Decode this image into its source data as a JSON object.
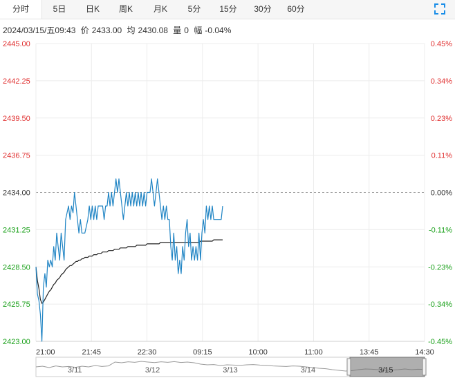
{
  "tabs": [
    {
      "label": "分时",
      "active": true
    },
    {
      "label": "5日",
      "active": false
    },
    {
      "label": "日K",
      "active": false
    },
    {
      "label": "周K",
      "active": false
    },
    {
      "label": "月K",
      "active": false
    },
    {
      "label": "5分",
      "active": false
    },
    {
      "label": "15分",
      "active": false
    },
    {
      "label": "30分",
      "active": false
    },
    {
      "label": "60分",
      "active": false
    }
  ],
  "info": {
    "datetime": "2024/03/15/五09:43",
    "price_label": "价",
    "price": "2433.00",
    "avg_label": "均",
    "avg": "2430.08",
    "vol_label": "量",
    "vol": "0",
    "change_label": "幅",
    "change": "-0.04%"
  },
  "colors": {
    "up": "#e03030",
    "down": "#1aa01a",
    "neutral": "#333333",
    "price_line": "#1f84c4",
    "avg_line": "#222222",
    "grid": "#ececec",
    "icon": "#1a8ee8"
  },
  "chart_data": {
    "type": "line",
    "title": "",
    "xlabel": "",
    "ylabel": "",
    "prev_close": 2434.0,
    "ylim": [
      2423.0,
      2445.0
    ],
    "y_ticks": [
      "2445.00",
      "2442.25",
      "2439.50",
      "2436.75",
      "2434.00",
      "2431.25",
      "2428.50",
      "2425.75",
      "2423.00"
    ],
    "pct_ticks": [
      "0.45%",
      "0.34%",
      "0.23%",
      "0.11%",
      "0.00%",
      "-0.11%",
      "-0.23%",
      "-0.34%",
      "-0.45%"
    ],
    "x_ticks": [
      "21:00",
      "21:45",
      "22:30",
      "09:15",
      "10:00",
      "11:00",
      "13:45",
      "14:30"
    ],
    "grid": true,
    "series": [
      {
        "role": "price",
        "values": [
          2428.5,
          2426.5,
          2426.0,
          2425.0,
          2423.0,
          2427.0,
          2428.0,
          2427.0,
          2429.0,
          2428.5,
          2429.0,
          2428.5,
          2430.0,
          2429.0,
          2431.0,
          2430.0,
          2429.0,
          2431.0,
          2430.0,
          2429.0,
          2432.0,
          2432.5,
          2433.0,
          2432.0,
          2433.0,
          2432.5,
          2434.0,
          2433.0,
          2432.0,
          2431.0,
          2432.0,
          2431.0,
          2431.0,
          2431.0,
          2431.5,
          2432.0,
          2433.0,
          2432.0,
          2433.0,
          2432.0,
          2433.0,
          2432.0,
          2433.0,
          2433.0,
          2433.0,
          2433.0,
          2432.0,
          2433.0,
          2433.0,
          2434.0,
          2433.0,
          2434.0,
          2433.0,
          2434.0,
          2435.0,
          2434.0,
          2435.0,
          2434.0,
          2433.0,
          2432.0,
          2433.0,
          2434.0,
          2433.0,
          2434.0,
          2433.0,
          2434.0,
          2433.0,
          2434.0,
          2433.0,
          2434.0,
          2433.0,
          2434.0,
          2433.0,
          2434.0,
          2433.0,
          2434.0,
          2434.0,
          2434.0,
          2435.0,
          2434.0,
          2433.0,
          2434.0,
          2435.0,
          2434.0,
          2433.0,
          2432.0,
          2433.0,
          2432.0,
          2433.0,
          2432.0,
          2432.0,
          2430.0,
          2429.0,
          2431.0,
          2429.0,
          2430.0,
          2428.0,
          2429.0,
          2428.0,
          2430.0,
          2429.0,
          2431.0,
          2432.0,
          2430.0,
          2431.0,
          2429.0,
          2430.0,
          2429.0,
          2430.0,
          2429.0,
          2431.0,
          2429.0,
          2431.0,
          2432.0,
          2431.0,
          2433.0,
          2432.0,
          2433.0,
          2432.0,
          2433.0,
          2432.0,
          2432.0,
          2432.0,
          2432.0,
          2432.0,
          2432.0,
          2433.0
        ]
      },
      {
        "role": "average",
        "values": [
          2428.5,
          2427.5,
          2426.9,
          2426.1,
          2425.8,
          2425.9,
          2426.1,
          2426.3,
          2426.5,
          2426.7,
          2426.8,
          2427.0,
          2427.2,
          2427.3,
          2427.5,
          2427.6,
          2427.7,
          2427.9,
          2428.0,
          2428.1,
          2428.3,
          2428.4,
          2428.5,
          2428.6,
          2428.6,
          2428.7,
          2428.8,
          2428.9,
          2428.9,
          2429.0,
          2429.0,
          2429.1,
          2429.1,
          2429.2,
          2429.2,
          2429.2,
          2429.3,
          2429.3,
          2429.3,
          2429.4,
          2429.4,
          2429.4,
          2429.5,
          2429.5,
          2429.5,
          2429.6,
          2429.6,
          2429.6,
          2429.6,
          2429.7,
          2429.7,
          2429.7,
          2429.7,
          2429.8,
          2429.8,
          2429.8,
          2429.8,
          2429.9,
          2429.9,
          2429.9,
          2429.9,
          2429.9,
          2430.0,
          2430.0,
          2430.0,
          2430.0,
          2430.0,
          2430.0,
          2430.1,
          2430.1,
          2430.1,
          2430.1,
          2430.1,
          2430.1,
          2430.1,
          2430.2,
          2430.2,
          2430.2,
          2430.2,
          2430.2,
          2430.2,
          2430.2,
          2430.2,
          2430.2,
          2430.3,
          2430.3,
          2430.3,
          2430.3,
          2430.3,
          2430.3,
          2430.3,
          2430.3,
          2430.3,
          2430.3,
          2430.3,
          2430.3,
          2430.3,
          2430.3,
          2430.3,
          2430.3,
          2430.3,
          2430.3,
          2430.3,
          2430.3,
          2430.3,
          2430.3,
          2430.3,
          2430.3,
          2430.3,
          2430.3,
          2430.3,
          2430.4,
          2430.4,
          2430.4,
          2430.4,
          2430.4,
          2430.4,
          2430.4,
          2430.4,
          2430.4,
          2430.5,
          2430.5,
          2430.5,
          2430.5,
          2430.5,
          2430.5,
          2430.5
        ]
      }
    ],
    "navigator": {
      "labels": [
        "3/11",
        "3/12",
        "3/13",
        "3/14",
        "3/15"
      ],
      "selected": "3/15",
      "trend": [
        0.55,
        0.6,
        0.5,
        0.62,
        0.55,
        0.58,
        0.52,
        0.6,
        0.55,
        0.65,
        0.58,
        0.62,
        0.9,
        0.85,
        0.92,
        0.88,
        0.95,
        0.9,
        0.86,
        0.92,
        0.88,
        0.93,
        0.87,
        0.9,
        0.85,
        0.75,
        0.7,
        0.72,
        0.65,
        0.7,
        0.68,
        0.66,
        0.7,
        0.72,
        0.68,
        0.66,
        0.62,
        0.6,
        0.58,
        0.62,
        0.6,
        0.55,
        0.5,
        0.45,
        0.42,
        0.35,
        0.3,
        0.25,
        0.28,
        0.35,
        0.4,
        0.38,
        0.35,
        0.3,
        0.32,
        0.35,
        0.4,
        0.35,
        0.38,
        0.36
      ]
    }
  }
}
